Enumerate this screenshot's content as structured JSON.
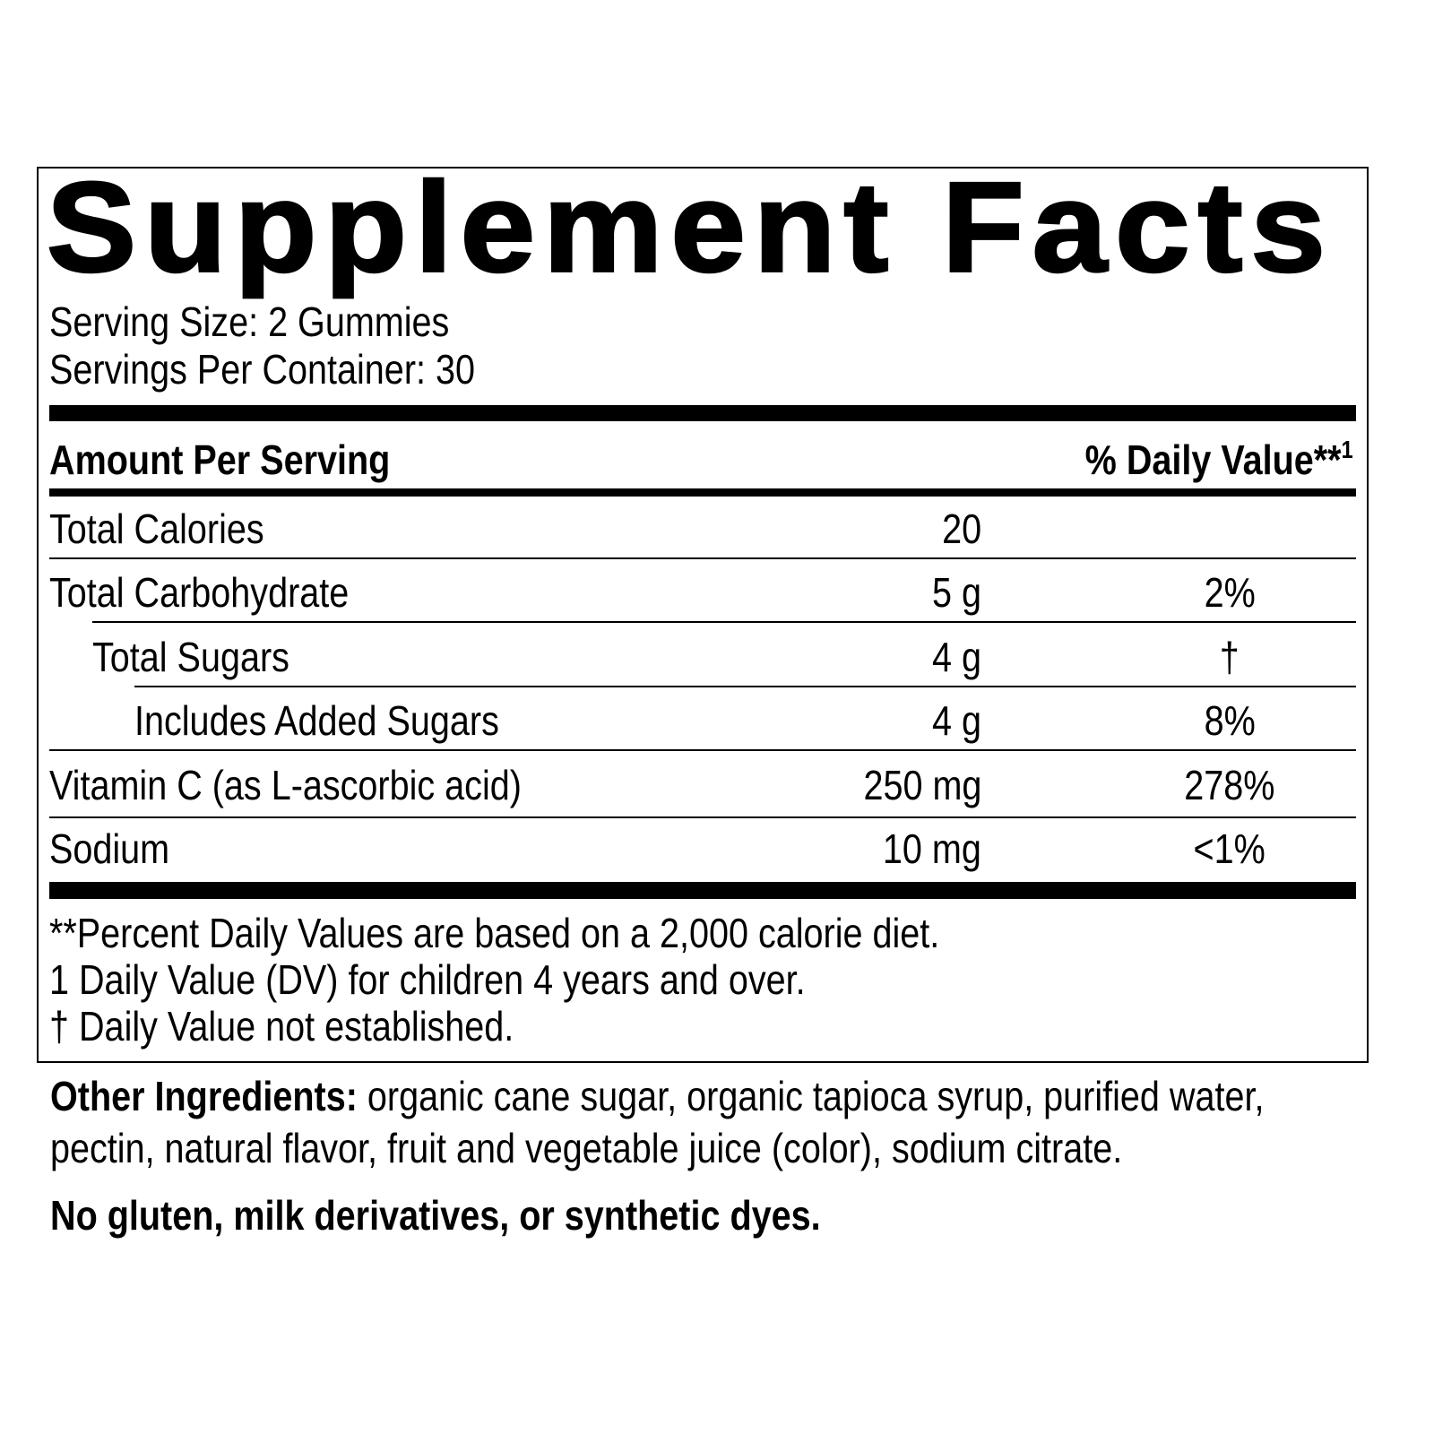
{
  "title": "Supplement Facts",
  "serving_size": "Serving Size: 2 Gummies",
  "servings_per_container": "Servings Per Container: 30",
  "header": {
    "amount": "Amount Per Serving",
    "daily_value": "% Daily Value**",
    "daily_value_sup": "1"
  },
  "rows": [
    {
      "name": "Total Calories",
      "amount": "20",
      "dv": ""
    },
    {
      "name": "Total Carbohydrate",
      "amount": "5 g",
      "dv": "2%"
    },
    {
      "name": "Total Sugars",
      "amount": "4 g",
      "dv": "†"
    },
    {
      "name": "Includes Added Sugars",
      "amount": "4 g",
      "dv": "8%"
    },
    {
      "name": "Vitamin C (as L-ascorbic acid)",
      "amount": "250 mg",
      "dv": "278%"
    },
    {
      "name": "Sodium",
      "amount": "10 mg",
      "dv": "<1%"
    }
  ],
  "footnotes": [
    "**Percent Daily Values are based on a 2,000 calorie diet.",
    "1 Daily Value (DV) for children 4 years and over.",
    "† Daily Value not established."
  ],
  "other_ingredients": {
    "label": "Other Ingredients:",
    "line1": " organic cane sugar, organic tapioca syrup, purified water,",
    "line2": "pectin, natural flavor, fruit and vegetable juice (color), sodium citrate."
  },
  "free_from": "No gluten, milk derivatives, or synthetic dyes."
}
